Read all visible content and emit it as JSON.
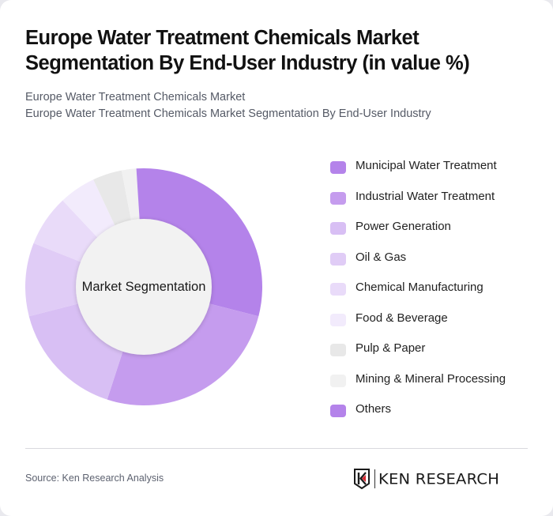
{
  "header": {
    "title": "Europe Water Treatment Chemicals Market Segmentation By End-User Industry (in value %)",
    "subtitle_line1": "Europe Water Treatment Chemicals Market",
    "subtitle_line2": "Europe Water Treatment Chemicals Market Segmentation By End-User Industry"
  },
  "donut": {
    "center_label": "Market Segmentation",
    "inner_color": "#f2f2f2"
  },
  "legend": {
    "items": [
      {
        "label": "Municipal Water Treatment",
        "color": "#b483ea"
      },
      {
        "label": "Industrial Water Treatment",
        "color": "#c59cee"
      },
      {
        "label": "Power Generation",
        "color": "#d8bff4"
      },
      {
        "label": "Oil & Gas",
        "color": "#e0ccf6"
      },
      {
        "label": "Chemical Manufacturing",
        "color": "#e9dbf9"
      },
      {
        "label": "Food & Beverage",
        "color": "#f2ebfc"
      },
      {
        "label": "Pulp & Paper",
        "color": "#e8e8e8"
      },
      {
        "label": "Mining & Mineral Processing",
        "color": "#f1f1f1"
      },
      {
        "label": "Others",
        "color": "#b483ea"
      }
    ]
  },
  "footer": {
    "source": "Source: Ken Research Analysis",
    "logo_text": "KEN RESEARCH",
    "logo_icon": "ken-research-k-shield-icon"
  },
  "chart_data": {
    "type": "pie",
    "subtype": "donut",
    "title": "Europe Water Treatment Chemicals Market Segmentation By End-User Industry (in value %)",
    "subtitle": "Europe Water Treatment Chemicals Market Segmentation By End-User Industry",
    "center_label": "Market Segmentation",
    "categories": [
      "Municipal Water Treatment",
      "Industrial Water Treatment",
      "Power Generation",
      "Oil & Gas",
      "Chemical Manufacturing",
      "Food & Beverage",
      "Pulp & Paper",
      "Mining & Mineral Processing",
      "Others"
    ],
    "values": [
      29,
      26,
      16,
      10,
      7,
      5,
      4,
      2,
      1
    ],
    "unit": "%",
    "colors": [
      "#b483ea",
      "#c59cee",
      "#d8bff4",
      "#e0ccf6",
      "#e9dbf9",
      "#f2ebfc",
      "#e8e8e8",
      "#f1f1f1",
      "#b483ea"
    ],
    "start_angle_deg": 0,
    "direction": "clockwise",
    "legend_position": "right",
    "data_labels": false
  }
}
